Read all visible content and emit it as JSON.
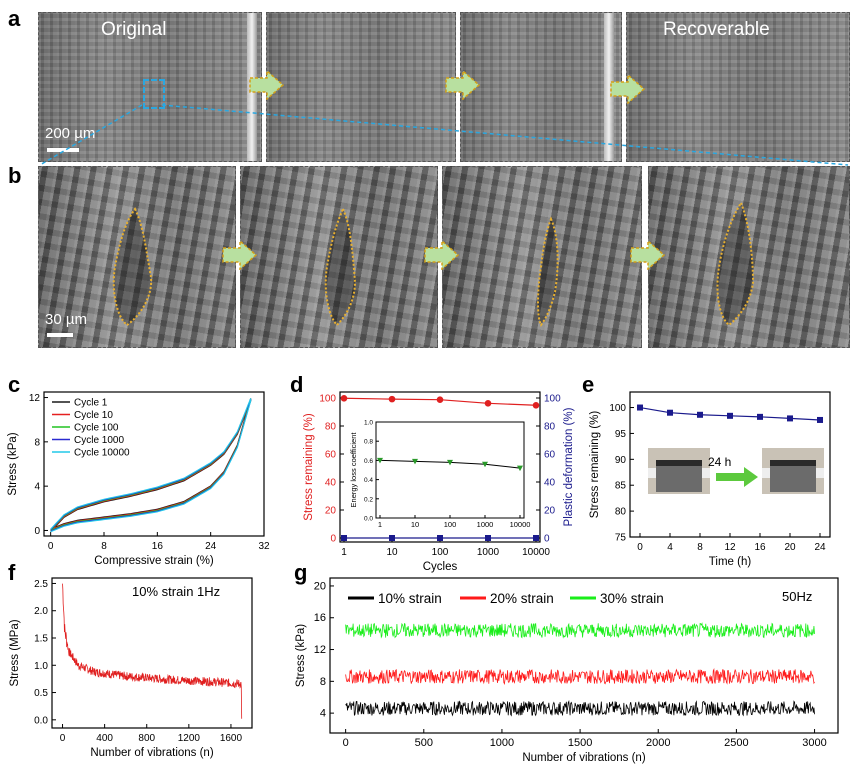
{
  "panels": {
    "a": {
      "letter": "a",
      "label_original": "Original",
      "label_recoverable": "Recoverable",
      "scale": "200 µm"
    },
    "b": {
      "letter": "b",
      "scale": "30 µm"
    },
    "c": {
      "letter": "c"
    },
    "d": {
      "letter": "d"
    },
    "e": {
      "letter": "e",
      "inset_time": "24 h"
    },
    "f": {
      "letter": "f",
      "annotation": "10% strain 1Hz"
    },
    "g": {
      "letter": "g",
      "annotation": "50Hz"
    }
  },
  "colors": {
    "arrow_fill": "#b8e0a0",
    "arrow_stroke": "#d4a017",
    "roi": "#2aa7e0",
    "outline": "#e8b030"
  },
  "chart_data": [
    {
      "id": "c",
      "type": "line",
      "xlabel": "Compressive strain (%)",
      "ylabel": "Stress (kPa)",
      "xlim": [
        -1,
        32
      ],
      "ylim": [
        -0.5,
        12.5
      ],
      "xticks": [
        0,
        8,
        16,
        24,
        32
      ],
      "yticks": [
        0,
        4,
        8,
        12
      ],
      "legend": "top-left",
      "series": [
        {
          "name": "Cycle 1",
          "color": "#1a1a1a"
        },
        {
          "name": "Cycle 10",
          "color": "#e52020"
        },
        {
          "name": "Cycle 100",
          "color": "#22c322"
        },
        {
          "name": "Cycle 1000",
          "color": "#2a2ad0"
        },
        {
          "name": "Cycle 10000",
          "color": "#22c8e8"
        }
      ],
      "loading": {
        "x": [
          0,
          2,
          4,
          8,
          12,
          16,
          20,
          24,
          26,
          28,
          30
        ],
        "y": [
          0,
          1.3,
          2.0,
          2.7,
          3.2,
          3.8,
          4.6,
          6.0,
          7.0,
          8.8,
          11.8
        ]
      },
      "unloading": {
        "x": [
          0,
          2,
          4,
          8,
          12,
          16,
          20,
          24,
          26,
          28,
          30
        ],
        "y": [
          0,
          0.5,
          0.8,
          1.1,
          1.4,
          1.8,
          2.5,
          3.9,
          5.2,
          7.6,
          11.8
        ]
      }
    },
    {
      "id": "d",
      "type": "line",
      "xlabel": "Cycles",
      "ylabel": "Stress remaining (%)",
      "ylabel_right": "Plastic deformation (%)",
      "xscale": "log",
      "xticks": [
        "1",
        "10",
        "100",
        "1000",
        "10000"
      ],
      "yticks": [
        0,
        20,
        40,
        60,
        80,
        100
      ],
      "ylim": [
        0,
        100
      ],
      "series": [
        {
          "name": "Stress remaining",
          "color": "#e02020",
          "x": [
            1,
            10,
            100,
            1000,
            10000
          ],
          "y": [
            99.8,
            99.2,
            98.8,
            96.2,
            94.8
          ]
        },
        {
          "name": "Plastic deformation",
          "color": "#1a1a8c",
          "x": [
            1,
            10,
            100,
            1000,
            10000
          ],
          "y": [
            0,
            0,
            0,
            0,
            0
          ]
        }
      ],
      "inset": {
        "ylabel": "Energy loss coefficient",
        "yticks": [
          "0.0",
          "0.2",
          "0.4",
          "0.6",
          "0.8",
          "1.0"
        ],
        "xticks": [
          "1",
          "10",
          "100",
          "1000",
          "10000"
        ],
        "x": [
          1,
          10,
          100,
          1000,
          10000
        ],
        "y": [
          0.6,
          0.59,
          0.58,
          0.56,
          0.52
        ],
        "color": "#2a9a2a"
      }
    },
    {
      "id": "e",
      "type": "line",
      "xlabel": "Time (h)",
      "ylabel": "Stress remaining (%)",
      "xticks": [
        0,
        4,
        8,
        12,
        16,
        20,
        24
      ],
      "yticks": [
        75,
        80,
        85,
        90,
        95,
        100
      ],
      "ylim": [
        75,
        103
      ],
      "series": [
        {
          "color": "#1a1a8c",
          "x": [
            0,
            4,
            8,
            12,
            16,
            20,
            24
          ],
          "y": [
            100,
            99.0,
            98.6,
            98.4,
            98.2,
            97.9,
            97.6
          ]
        }
      ]
    },
    {
      "id": "f",
      "type": "line",
      "xlabel": "Number of vibrations (n)",
      "ylabel": "Stress (MPa)",
      "xticks": [
        0,
        400,
        800,
        1200,
        1600
      ],
      "yticks": [
        "0.0",
        "0.5",
        "1.0",
        "1.5",
        "2.0",
        "2.5"
      ],
      "xlim": [
        -100,
        1800
      ],
      "ylim": [
        -0.15,
        2.6
      ],
      "series": [
        {
          "color": "#e02020",
          "envelope": {
            "x": [
              0,
              20,
              60,
              150,
              300,
              600,
              1000,
              1400,
              1700
            ],
            "y": [
              2.5,
              1.65,
              1.25,
              1.0,
              0.88,
              0.8,
              0.74,
              0.7,
              0.66
            ]
          }
        }
      ]
    },
    {
      "id": "g",
      "type": "line",
      "xlabel": "Number of vibrations (n)",
      "ylabel": "Stress (kPa)",
      "xticks": [
        0,
        500,
        1000,
        1500,
        2000,
        2500,
        3000
      ],
      "yticks": [
        4,
        8,
        12,
        16,
        20
      ],
      "xlim": [
        -100,
        3150
      ],
      "ylim": [
        1.5,
        21
      ],
      "legend": "top",
      "series": [
        {
          "name": "10% strain",
          "color": "#000000",
          "mean": 4.6
        },
        {
          "name": "20% strain",
          "color": "#ff1a1a",
          "mean": 8.6
        },
        {
          "name": "30% strain",
          "color": "#1aee1a",
          "mean": 14.4
        }
      ]
    }
  ]
}
